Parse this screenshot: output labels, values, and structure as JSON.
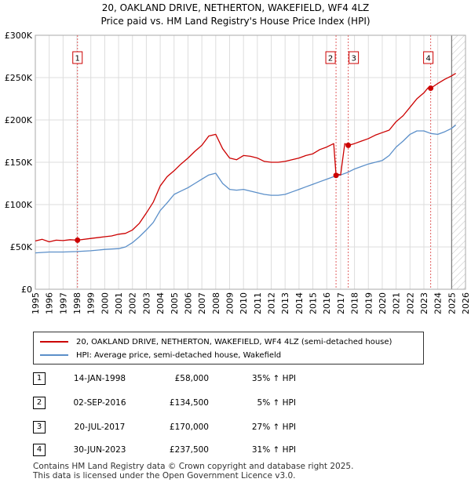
{
  "titles": {
    "line1": "20, OAKLAND DRIVE, NETHERTON, WAKEFIELD, WF4 4LZ",
    "line2": "Price paid vs. HM Land Registry's House Price Index (HPI)"
  },
  "chart_data": {
    "type": "line",
    "title": "20, OAKLAND DRIVE, NETHERTON, WAKEFIELD, WF4 4LZ — Price paid vs. HM Land Registry's House Price Index (HPI)",
    "xlim": [
      1995,
      2026
    ],
    "ylim": [
      0,
      300000
    ],
    "y_ticks": [
      0,
      50000,
      100000,
      150000,
      200000,
      250000,
      300000
    ],
    "y_tick_labels": [
      "£0",
      "£50K",
      "£100K",
      "£150K",
      "£200K",
      "£250K",
      "£300K"
    ],
    "x_ticks": [
      1995,
      1996,
      1997,
      1998,
      1999,
      2000,
      2001,
      2002,
      2003,
      2004,
      2005,
      2006,
      2007,
      2008,
      2009,
      2010,
      2011,
      2012,
      2013,
      2014,
      2015,
      2016,
      2017,
      2018,
      2019,
      2020,
      2021,
      2022,
      2023,
      2024,
      2025,
      2026
    ],
    "grid": true,
    "forecast_from": 2025.0,
    "colors": {
      "property": "#cc0000",
      "hpi": "#5b8fc9",
      "marker": "#cc0000",
      "vline": "#e06060"
    },
    "series": [
      {
        "name": "20, OAKLAND DRIVE, NETHERTON, WAKEFIELD, WF4 4LZ (semi-detached house)",
        "color": "#cc0000",
        "x": [
          1995.0,
          1995.5,
          1996.0,
          1996.5,
          1997.0,
          1997.5,
          1998.04,
          1999.0,
          2000.0,
          2000.5,
          2001.0,
          2001.5,
          2002.0,
          2002.5,
          2003.0,
          2003.5,
          2004.0,
          2004.5,
          2005.0,
          2005.5,
          2006.0,
          2006.5,
          2007.0,
          2007.5,
          2008.0,
          2008.5,
          2009.0,
          2009.5,
          2010.0,
          2010.5,
          2011.0,
          2011.5,
          2012.0,
          2012.5,
          2013.0,
          2013.5,
          2014.0,
          2014.5,
          2015.0,
          2015.5,
          2016.0,
          2016.5,
          2016.67,
          2016.8,
          2017.0,
          2017.3,
          2017.55,
          2017.8,
          2018.0,
          2018.5,
          2019.0,
          2019.5,
          2020.0,
          2020.5,
          2021.0,
          2021.5,
          2022.0,
          2022.5,
          2023.0,
          2023.3,
          2023.5,
          2024.0,
          2024.5,
          2025.0,
          2025.3
        ],
        "y": [
          57000,
          59000,
          56000,
          58000,
          57500,
          58500,
          58000,
          60000,
          62000,
          63000,
          65000,
          66000,
          70000,
          78000,
          90000,
          103000,
          122000,
          133000,
          140000,
          148000,
          155000,
          163000,
          170000,
          181000,
          183000,
          166000,
          155000,
          153000,
          158000,
          157000,
          155000,
          151000,
          150000,
          150000,
          151000,
          153000,
          155000,
          158000,
          160000,
          165000,
          168000,
          172000,
          134500,
          136000,
          135000,
          172000,
          170000,
          171000,
          172000,
          175000,
          178000,
          182000,
          185000,
          188000,
          198000,
          205000,
          215000,
          225000,
          232000,
          238000,
          237500,
          243000,
          248000,
          252000,
          255000
        ]
      },
      {
        "name": "HPI: Average price, semi-detached house, Wakefield",
        "color": "#5b8fc9",
        "x": [
          1995.0,
          1996.0,
          1997.0,
          1998.0,
          1999.0,
          2000.0,
          2001.0,
          2001.5,
          2002.0,
          2002.5,
          2003.0,
          2003.5,
          2004.0,
          2004.5,
          2005.0,
          2005.5,
          2006.0,
          2006.5,
          2007.0,
          2007.5,
          2008.0,
          2008.5,
          2009.0,
          2009.5,
          2010.0,
          2010.5,
          2011.0,
          2011.5,
          2012.0,
          2012.5,
          2013.0,
          2013.5,
          2014.0,
          2014.5,
          2015.0,
          2015.5,
          2016.0,
          2016.5,
          2017.0,
          2017.5,
          2018.0,
          2018.5,
          2019.0,
          2019.5,
          2020.0,
          2020.5,
          2021.0,
          2021.5,
          2022.0,
          2022.5,
          2023.0,
          2023.5,
          2024.0,
          2024.5,
          2025.0,
          2025.3
        ],
        "y": [
          43000,
          44000,
          44000,
          44500,
          45500,
          47000,
          48000,
          50000,
          55000,
          62000,
          70000,
          79000,
          93000,
          102000,
          112000,
          116000,
          120000,
          125000,
          130000,
          135000,
          137000,
          125000,
          118000,
          117000,
          118000,
          116000,
          114000,
          112000,
          111000,
          111000,
          112000,
          115000,
          118000,
          121000,
          124000,
          127000,
          130000,
          133000,
          135000,
          138000,
          142000,
          145000,
          148000,
          150000,
          152000,
          158000,
          168000,
          175000,
          183000,
          187000,
          187000,
          184000,
          183000,
          186000,
          190000,
          194000
        ]
      }
    ],
    "sales": [
      {
        "num": "1",
        "x": 1998.04,
        "price": 58000
      },
      {
        "num": "2",
        "x": 2016.67,
        "price": 134500
      },
      {
        "num": "3",
        "x": 2017.55,
        "price": 170000
      },
      {
        "num": "4",
        "x": 2023.49,
        "price": 237500
      }
    ]
  },
  "legend": {
    "property_label": "20, OAKLAND DRIVE, NETHERTON, WAKEFIELD, WF4 4LZ (semi-detached house)",
    "hpi_label": "HPI: Average price, semi-detached house, Wakefield"
  },
  "sales_table": [
    {
      "num": "1",
      "date": "14-JAN-1998",
      "price": "£58,000",
      "hpi": "35% ↑ HPI"
    },
    {
      "num": "2",
      "date": "02-SEP-2016",
      "price": "£134,500",
      "hpi": "5% ↑ HPI"
    },
    {
      "num": "3",
      "date": "20-JUL-2017",
      "price": "£170,000",
      "hpi": "27% ↑ HPI"
    },
    {
      "num": "4",
      "date": "30-JUN-2023",
      "price": "£237,500",
      "hpi": "31% ↑ HPI"
    }
  ],
  "footer": {
    "line1": "Contains HM Land Registry data © Crown copyright and database right 2025.",
    "line2": "This data is licensed under the Open Government Licence v3.0."
  }
}
